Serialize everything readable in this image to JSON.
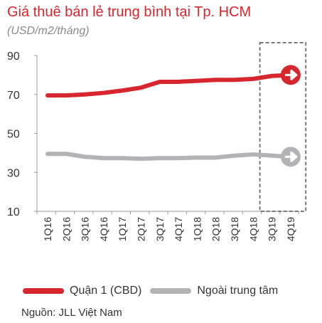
{
  "title": "Giá thuê bán lẻ trung bình tại Tp. HCM",
  "subtitle": "(USD/m2/tháng)",
  "source": "Nguồn: JLL Việt Nam",
  "chart_data": {
    "type": "line",
    "categories": [
      "1Q16",
      "2Q16",
      "3Q16",
      "4Q16",
      "1Q17",
      "2Q17",
      "3Q17",
      "4Q17",
      "1Q18",
      "2Q18",
      "3Q18",
      "4Q18",
      "3Q19",
      "4Q19"
    ],
    "series": [
      {
        "name": "Quận 1 (CBD)",
        "color": "#d8262f",
        "values": [
          69.5,
          69.5,
          70.0,
          70.8,
          72.0,
          73.5,
          76.5,
          76.5,
          77.0,
          77.5,
          77.5,
          78.0,
          79.5,
          80.0
        ]
      },
      {
        "name": "Ngoài trung tâm",
        "color": "#b3b3b5",
        "values": [
          39.5,
          39.5,
          38.0,
          37.3,
          37.3,
          37.0,
          37.3,
          37.3,
          37.6,
          37.6,
          38.6,
          39.2,
          38.6,
          38.0
        ]
      }
    ],
    "yticks": [
      10,
      30,
      50,
      70,
      90
    ],
    "ylim": [
      10,
      90
    ],
    "grid": false,
    "forecast_start_index": 12,
    "legend_position": "bottom"
  }
}
